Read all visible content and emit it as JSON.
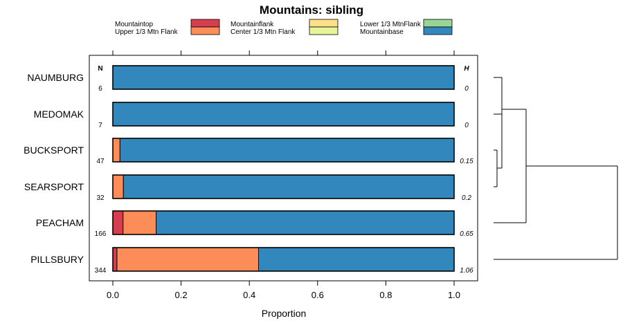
{
  "chart_data": {
    "type": "bar",
    "orientation": "horizontal",
    "stacked": true,
    "title": "Mountains: sibling",
    "xlabel": "Proportion",
    "ylabel": "",
    "xlim": [
      0,
      1
    ],
    "x_ticks": [
      "0.0",
      "0.2",
      "0.4",
      "0.6",
      "0.8",
      "1.0"
    ],
    "x_tick_values": [
      0,
      0.2,
      0.4,
      0.6,
      0.8,
      1.0
    ],
    "grid": false,
    "legend_position": "top",
    "n_header": "N",
    "h_header": "H",
    "categories": [
      "NAUMBURG",
      "MEDOMAK",
      "BUCKSPORT",
      "SEARSPORT",
      "PEACHAM",
      "PILLSBURY"
    ],
    "n_values": [
      "6",
      "7",
      "47",
      "32",
      "166",
      "344"
    ],
    "h_values": [
      "0",
      "0",
      "0.15",
      "0.2",
      "0.65",
      "1.06"
    ],
    "series": [
      {
        "name": "Mountaintop",
        "color": "#d53e4f",
        "values": [
          0,
          0,
          0,
          0,
          0.03,
          0.012
        ]
      },
      {
        "name": "Upper 1/3 Mtn Flank",
        "color": "#fc8d59",
        "values": [
          0,
          0,
          0.021,
          0.031,
          0.097,
          0.415
        ]
      },
      {
        "name": "Mountainflank",
        "color": "#fee08b",
        "values": [
          0,
          0,
          0,
          0,
          0,
          0
        ]
      },
      {
        "name": "Center 1/3 Mtn Flank",
        "color": "#e6f598",
        "values": [
          0,
          0,
          0,
          0,
          0,
          0
        ]
      },
      {
        "name": "Lower 1/3 MtnFlank",
        "color": "#99d594",
        "values": [
          0,
          0,
          0,
          0,
          0,
          0
        ]
      },
      {
        "name": "Mountainbase",
        "color": "#3288bd",
        "values": [
          1,
          1,
          0.979,
          0.969,
          0.873,
          0.573
        ]
      }
    ]
  }
}
